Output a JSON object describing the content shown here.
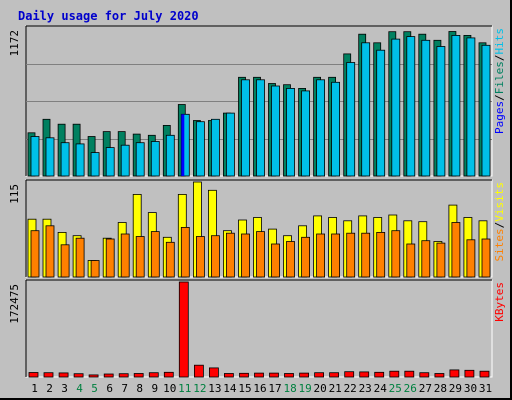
{
  "chart_data": {
    "type": "bar",
    "title": "Daily usage for July 2020",
    "categories": [
      "1",
      "2",
      "3",
      "4",
      "5",
      "6",
      "7",
      "8",
      "9",
      "10",
      "11",
      "12",
      "13",
      "14",
      "15",
      "16",
      "17",
      "18",
      "19",
      "20",
      "21",
      "22",
      "23",
      "24",
      "25",
      "26",
      "27",
      "28",
      "29",
      "30",
      "31"
    ],
    "weekend_days": [
      "4",
      "5",
      "11",
      "12",
      "18",
      "19",
      "25",
      "26"
    ],
    "colors": {
      "title": "#0000cc",
      "weekday_label": "#000000",
      "weekend_label": "#008040",
      "hits": "#00c0e8",
      "files": "#008060",
      "pages": "#0000ff",
      "visits": "#ffff00",
      "sites": "#ff8000",
      "kbytes": "#ff0000",
      "panel_bg": "#c0c0c0"
    },
    "panels": [
      {
        "id": "top",
        "max_label": "1172",
        "ymax": 1200,
        "legend": [
          "Pages",
          "/",
          "Files",
          "/",
          "Hits"
        ],
        "series": [
          {
            "name": "Files",
            "values": [
              350,
              460,
              420,
              420,
              320,
              360,
              360,
              340,
              330,
              410,
              580,
              450,
              450,
              510,
              800,
              800,
              750,
              740,
              710,
              800,
              800,
              990,
              1150,
              1080,
              1170,
              1170,
              1150,
              1100,
              1172,
              1140,
              1080
            ]
          },
          {
            "name": "Hits",
            "values": [
              320,
              310,
              270,
              260,
              190,
              230,
              250,
              270,
              280,
              330,
              500,
              440,
              460,
              510,
              780,
              780,
              730,
              710,
              690,
              780,
              760,
              920,
              1080,
              1020,
              1110,
              1130,
              1100,
              1050,
              1140,
              1120,
              1060
            ]
          },
          {
            "name": "Pages",
            "values": [
              0,
              0,
              0,
              0,
              0,
              0,
              0,
              0,
              0,
              0,
              500,
              0,
              0,
              0,
              0,
              0,
              0,
              0,
              0,
              0,
              0,
              0,
              0,
              0,
              0,
              0,
              0,
              0,
              0,
              0,
              0
            ]
          }
        ]
      },
      {
        "id": "mid",
        "max_label": "115",
        "ymax": 115,
        "legend": [
          "Sites",
          "/",
          "Visits"
        ],
        "series": [
          {
            "name": "Visits",
            "values": [
              70,
              70,
              54,
              50,
              20,
              47,
              66,
              100,
              78,
              48,
              100,
              115,
              105,
              56,
              69,
              72,
              58,
              50,
              62,
              74,
              72,
              68,
              74,
              72,
              75,
              68,
              67,
              43,
              87,
              72,
              68
            ]
          },
          {
            "name": "Sites",
            "values": [
              56,
              62,
              39,
              47,
              20,
              46,
              52,
              49,
              55,
              42,
              60,
              49,
              50,
              53,
              52,
              55,
              40,
              43,
              48,
              52,
              52,
              53,
              53,
              54,
              56,
              40,
              44,
              41,
              66,
              45,
              46
            ]
          }
        ]
      },
      {
        "id": "bot",
        "max_label": "172475",
        "ymax": 172475,
        "legend": [
          "KBytes"
        ],
        "series": [
          {
            "name": "KBytes",
            "values": [
              8200,
              7800,
              7500,
              6000,
              3800,
              5500,
              6000,
              6400,
              7800,
              8500,
              172475,
              21500,
              16500,
              6400,
              6700,
              7100,
              7100,
              6400,
              7100,
              7800,
              7800,
              9600,
              9200,
              8500,
              10600,
              10600,
              7800,
              6400,
              12800,
              12100,
              10600
            ]
          }
        ]
      }
    ]
  }
}
